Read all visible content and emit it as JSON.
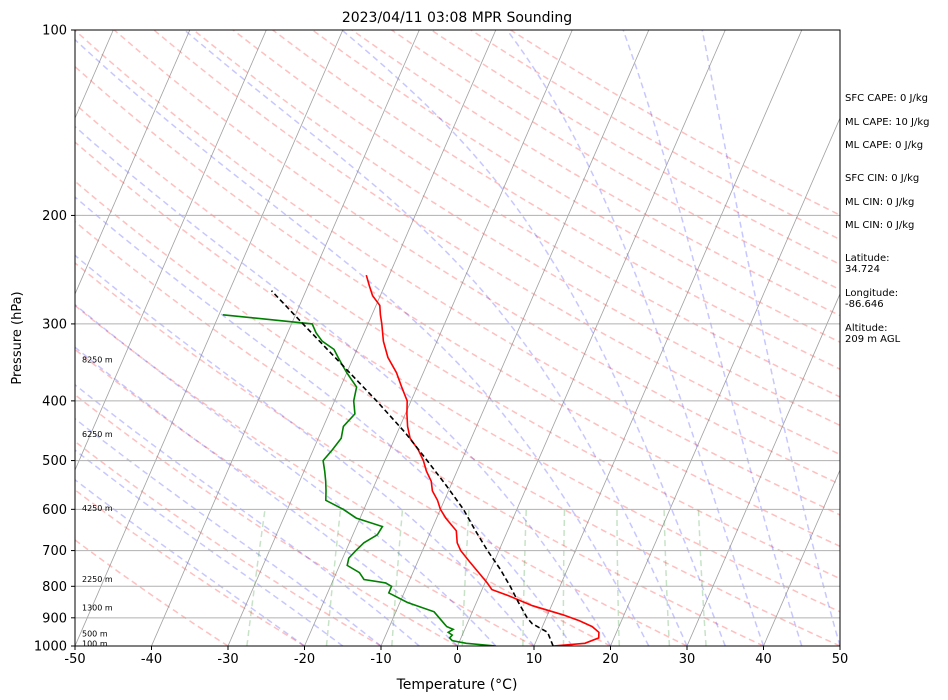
{
  "chart_data": {
    "type": "line",
    "title": "2023/04/11 03:08 MPR Sounding",
    "xlabel": "Temperature (°C)",
    "ylabel": "Pressure (hPa)",
    "xlim": [
      -50,
      50
    ],
    "ylim": [
      1000,
      100
    ],
    "y_scale": "log",
    "skew_t": true,
    "x_ticks": [
      -50,
      -40,
      -30,
      -20,
      -10,
      0,
      10,
      20,
      30,
      40,
      50
    ],
    "y_ticks": [
      100,
      200,
      300,
      400,
      500,
      600,
      700,
      800,
      900,
      1000
    ],
    "grid": true,
    "height_labels": [
      {
        "text": "100 m",
        "p": 990
      },
      {
        "text": "500 m",
        "p": 955
      },
      {
        "text": "1300 m",
        "p": 866
      },
      {
        "text": "2250 m",
        "p": 778
      },
      {
        "text": "4250 m",
        "p": 597
      },
      {
        "text": "6250 m",
        "p": 453
      },
      {
        "text": "8250 m",
        "p": 343
      }
    ],
    "series": [
      {
        "role": "temperature",
        "color": "#ff0000",
        "points": [
          [
            1000,
            12.5
          ],
          [
            990,
            16.5
          ],
          [
            970,
            18
          ],
          [
            950,
            17.7
          ],
          [
            930,
            16.5
          ],
          [
            910,
            14.5
          ],
          [
            890,
            12
          ],
          [
            860,
            7.5
          ],
          [
            830,
            4
          ],
          [
            810,
            1.3
          ],
          [
            790,
            0.3
          ],
          [
            760,
            -1.4
          ],
          [
            730,
            -3.2
          ],
          [
            700,
            -5
          ],
          [
            680,
            -5.9
          ],
          [
            650,
            -6.7
          ],
          [
            620,
            -8.8
          ],
          [
            600,
            -10
          ],
          [
            580,
            -10.9
          ],
          [
            560,
            -12.1
          ],
          [
            540,
            -12.8
          ],
          [
            520,
            -14
          ],
          [
            500,
            -15
          ],
          [
            480,
            -16.3
          ],
          [
            460,
            -18
          ],
          [
            440,
            -19
          ],
          [
            420,
            -19.8
          ],
          [
            400,
            -20.5
          ],
          [
            380,
            -22
          ],
          [
            360,
            -23.5
          ],
          [
            340,
            -25.5
          ],
          [
            320,
            -27
          ],
          [
            300,
            -28.2
          ],
          [
            290,
            -28.9
          ],
          [
            280,
            -29.5
          ],
          [
            270,
            -31
          ],
          [
            260,
            -32
          ],
          [
            250,
            -33
          ]
        ]
      },
      {
        "role": "dewpoint",
        "color": "#008000",
        "points": [
          [
            1000,
            5
          ],
          [
            990,
            1
          ],
          [
            980,
            -1
          ],
          [
            970,
            -1.5
          ],
          [
            960,
            -1.3
          ],
          [
            950,
            -2
          ],
          [
            940,
            -1.5
          ],
          [
            930,
            -2.5
          ],
          [
            920,
            -3
          ],
          [
            900,
            -4
          ],
          [
            880,
            -5
          ],
          [
            850,
            -9
          ],
          [
            820,
            -12
          ],
          [
            800,
            -12
          ],
          [
            790,
            -13
          ],
          [
            780,
            -16
          ],
          [
            760,
            -17
          ],
          [
            740,
            -19
          ],
          [
            720,
            -19.2
          ],
          [
            700,
            -18.7
          ],
          [
            680,
            -18.1
          ],
          [
            660,
            -16.8
          ],
          [
            640,
            -16.6
          ],
          [
            620,
            -20.5
          ],
          [
            600,
            -22.7
          ],
          [
            580,
            -25.5
          ],
          [
            560,
            -26
          ],
          [
            540,
            -26.6
          ],
          [
            520,
            -27.3
          ],
          [
            500,
            -28.1
          ],
          [
            480,
            -27.5
          ],
          [
            460,
            -27
          ],
          [
            440,
            -27.4
          ],
          [
            420,
            -26.6
          ],
          [
            400,
            -27.5
          ],
          [
            380,
            -27.9
          ],
          [
            360,
            -30
          ],
          [
            350,
            -31
          ],
          [
            340,
            -32
          ],
          [
            330,
            -33
          ],
          [
            320,
            -35
          ],
          [
            310,
            -36.3
          ],
          [
            300,
            -37.3
          ],
          [
            290,
            -49.5
          ]
        ]
      },
      {
        "role": "parcel",
        "color": "#000000",
        "points": [
          [
            1000,
            12.5
          ],
          [
            950,
            11
          ],
          [
            920,
            8.5
          ],
          [
            900,
            7.5
          ],
          [
            850,
            5.5
          ],
          [
            800,
            3.5
          ],
          [
            750,
            1.2
          ],
          [
            700,
            -1.5
          ],
          [
            650,
            -4.2
          ],
          [
            600,
            -7
          ],
          [
            550,
            -10.5
          ],
          [
            500,
            -14.5
          ],
          [
            450,
            -19
          ],
          [
            400,
            -24.5
          ],
          [
            350,
            -31
          ],
          [
            300,
            -38.5
          ],
          [
            265,
            -44.5
          ]
        ]
      }
    ]
  },
  "side_info": {
    "sfc_cape": "SFC CAPE: 0 J/kg",
    "ml_cape": "ML CAPE: 10 J/kg",
    "ml_cape_2": "ML CAPE: 0 J/kg",
    "sfc_cin": "SFC CIN: 0 J/kg",
    "ml_cin": "ML CIN: 0 J/kg",
    "ml_cin_2": "ML CIN: 0 J/kg",
    "latitude": "Latitude:\n34.724",
    "longitude": "Longitude:\n-86.646",
    "altitude": "Altitude:\n209 m AGL"
  }
}
